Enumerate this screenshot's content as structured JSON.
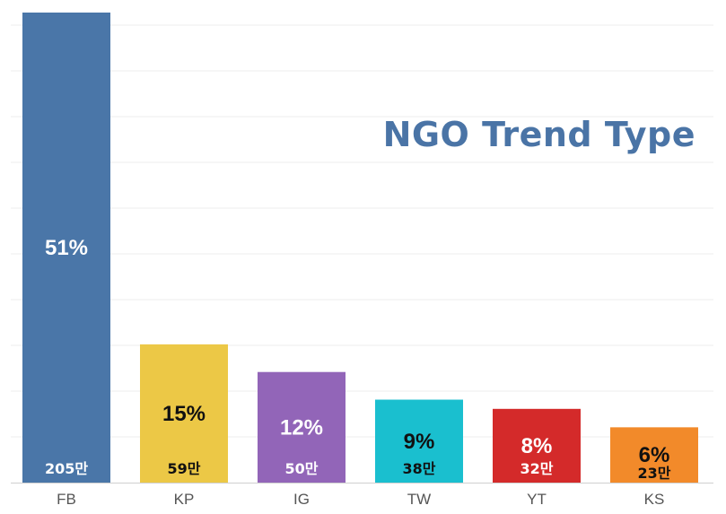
{
  "chart_data": {
    "type": "bar",
    "title": "NGO Trend Type",
    "xlabel": "",
    "ylabel": "",
    "categories": [
      "FB",
      "KP",
      "IG",
      "TW",
      "YT",
      "KS"
    ],
    "values": [
      51,
      15,
      12,
      9,
      8,
      6
    ],
    "percent_labels": [
      "51%",
      "15%",
      "12%",
      "9%",
      "8%",
      "6%"
    ],
    "count_labels": [
      "205만",
      "59만",
      "50만",
      "38만",
      "32만",
      "23만"
    ],
    "colors": [
      "#4a76a8",
      "#ecc846",
      "#9265b8",
      "#1abfcf",
      "#d42a2a",
      "#f28a2a"
    ],
    "label_colors": [
      "#ffffff",
      "#111111",
      "#ffffff",
      "#111111",
      "#ffffff",
      "#111111"
    ],
    "ylim": [
      0,
      51
    ],
    "grid": true,
    "legend": "none"
  }
}
